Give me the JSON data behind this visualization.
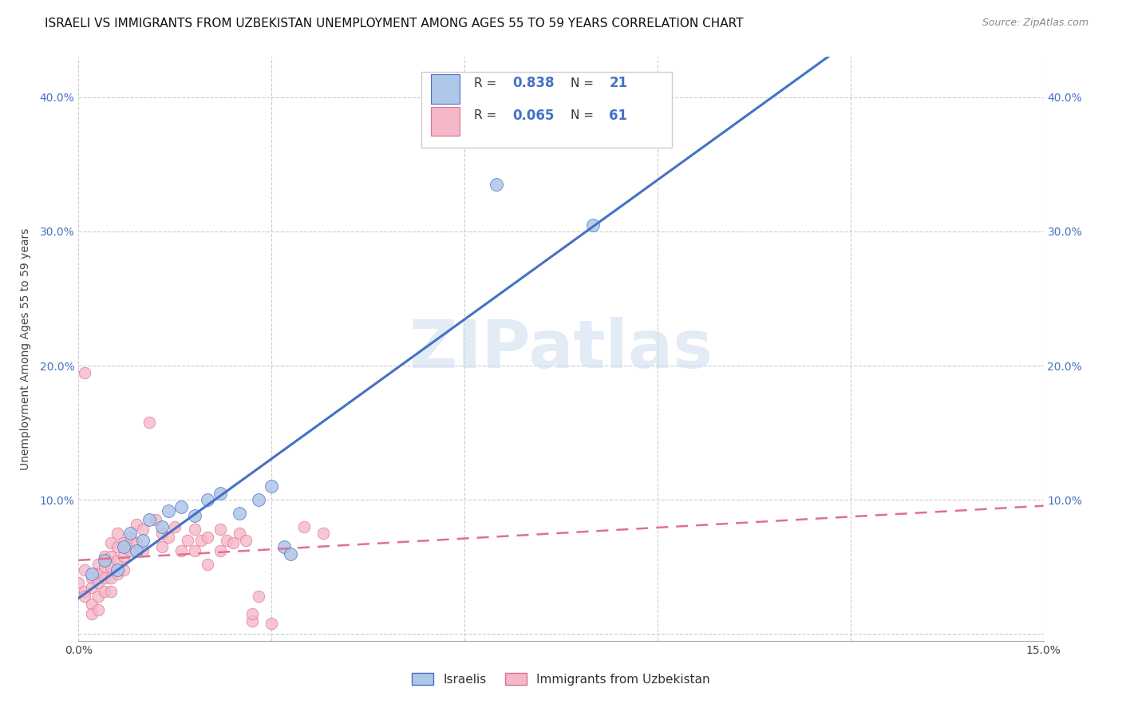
{
  "title": "ISRAELI VS IMMIGRANTS FROM UZBEKISTAN UNEMPLOYMENT AMONG AGES 55 TO 59 YEARS CORRELATION CHART",
  "source": "Source: ZipAtlas.com",
  "ylabel": "Unemployment Among Ages 55 to 59 years",
  "xlim": [
    0.0,
    0.15
  ],
  "ylim": [
    -0.005,
    0.43
  ],
  "xticks": [
    0.0,
    0.03,
    0.06,
    0.09,
    0.12,
    0.15
  ],
  "xtick_labels": [
    "0.0%",
    "",
    "",
    "",
    "",
    "15.0%"
  ],
  "yticks": [
    0.0,
    0.1,
    0.2,
    0.3,
    0.4
  ],
  "ytick_labels": [
    "",
    "10.0%",
    "20.0%",
    "30.0%",
    "40.0%"
  ],
  "legend_label_israeli": "Israelis",
  "legend_label_uzbek": "Immigrants from Uzbekistan",
  "R_israeli": 0.838,
  "N_israeli": 21,
  "R_uzbek": 0.065,
  "N_uzbek": 61,
  "color_israeli": "#aec6e8",
  "color_uzbek": "#f4b8c8",
  "color_line_israeli": "#4472c4",
  "color_line_uzbek": "#e07090",
  "watermark": "ZIPatlas",
  "title_fontsize": 11,
  "axis_label_fontsize": 10,
  "tick_fontsize": 10,
  "israeli_points": [
    [
      0.002,
      0.045
    ],
    [
      0.004,
      0.055
    ],
    [
      0.006,
      0.048
    ],
    [
      0.007,
      0.065
    ],
    [
      0.008,
      0.075
    ],
    [
      0.009,
      0.062
    ],
    [
      0.01,
      0.07
    ],
    [
      0.011,
      0.085
    ],
    [
      0.013,
      0.08
    ],
    [
      0.014,
      0.092
    ],
    [
      0.016,
      0.095
    ],
    [
      0.018,
      0.088
    ],
    [
      0.02,
      0.1
    ],
    [
      0.022,
      0.105
    ],
    [
      0.025,
      0.09
    ],
    [
      0.028,
      0.1
    ],
    [
      0.03,
      0.11
    ],
    [
      0.032,
      0.065
    ],
    [
      0.033,
      0.06
    ],
    [
      0.065,
      0.335
    ],
    [
      0.08,
      0.305
    ]
  ],
  "uzbek_points": [
    [
      0.0,
      0.038
    ],
    [
      0.001,
      0.048
    ],
    [
      0.001,
      0.032
    ],
    [
      0.001,
      0.028
    ],
    [
      0.001,
      0.195
    ],
    [
      0.002,
      0.042
    ],
    [
      0.002,
      0.035
    ],
    [
      0.002,
      0.022
    ],
    [
      0.002,
      0.015
    ],
    [
      0.003,
      0.052
    ],
    [
      0.003,
      0.045
    ],
    [
      0.003,
      0.038
    ],
    [
      0.003,
      0.028
    ],
    [
      0.003,
      0.018
    ],
    [
      0.004,
      0.058
    ],
    [
      0.004,
      0.05
    ],
    [
      0.004,
      0.042
    ],
    [
      0.004,
      0.032
    ],
    [
      0.005,
      0.068
    ],
    [
      0.005,
      0.058
    ],
    [
      0.005,
      0.05
    ],
    [
      0.005,
      0.042
    ],
    [
      0.005,
      0.032
    ],
    [
      0.006,
      0.075
    ],
    [
      0.006,
      0.065
    ],
    [
      0.006,
      0.055
    ],
    [
      0.006,
      0.045
    ],
    [
      0.007,
      0.068
    ],
    [
      0.007,
      0.058
    ],
    [
      0.007,
      0.048
    ],
    [
      0.008,
      0.072
    ],
    [
      0.008,
      0.062
    ],
    [
      0.009,
      0.082
    ],
    [
      0.009,
      0.068
    ],
    [
      0.01,
      0.078
    ],
    [
      0.01,
      0.062
    ],
    [
      0.011,
      0.158
    ],
    [
      0.012,
      0.085
    ],
    [
      0.013,
      0.075
    ],
    [
      0.013,
      0.065
    ],
    [
      0.014,
      0.072
    ],
    [
      0.015,
      0.08
    ],
    [
      0.016,
      0.062
    ],
    [
      0.017,
      0.07
    ],
    [
      0.018,
      0.078
    ],
    [
      0.018,
      0.062
    ],
    [
      0.019,
      0.07
    ],
    [
      0.02,
      0.072
    ],
    [
      0.02,
      0.052
    ],
    [
      0.022,
      0.078
    ],
    [
      0.022,
      0.062
    ],
    [
      0.023,
      0.07
    ],
    [
      0.024,
      0.068
    ],
    [
      0.025,
      0.075
    ],
    [
      0.026,
      0.07
    ],
    [
      0.027,
      0.01
    ],
    [
      0.027,
      0.015
    ],
    [
      0.028,
      0.028
    ],
    [
      0.03,
      0.008
    ],
    [
      0.035,
      0.08
    ],
    [
      0.038,
      0.075
    ]
  ]
}
